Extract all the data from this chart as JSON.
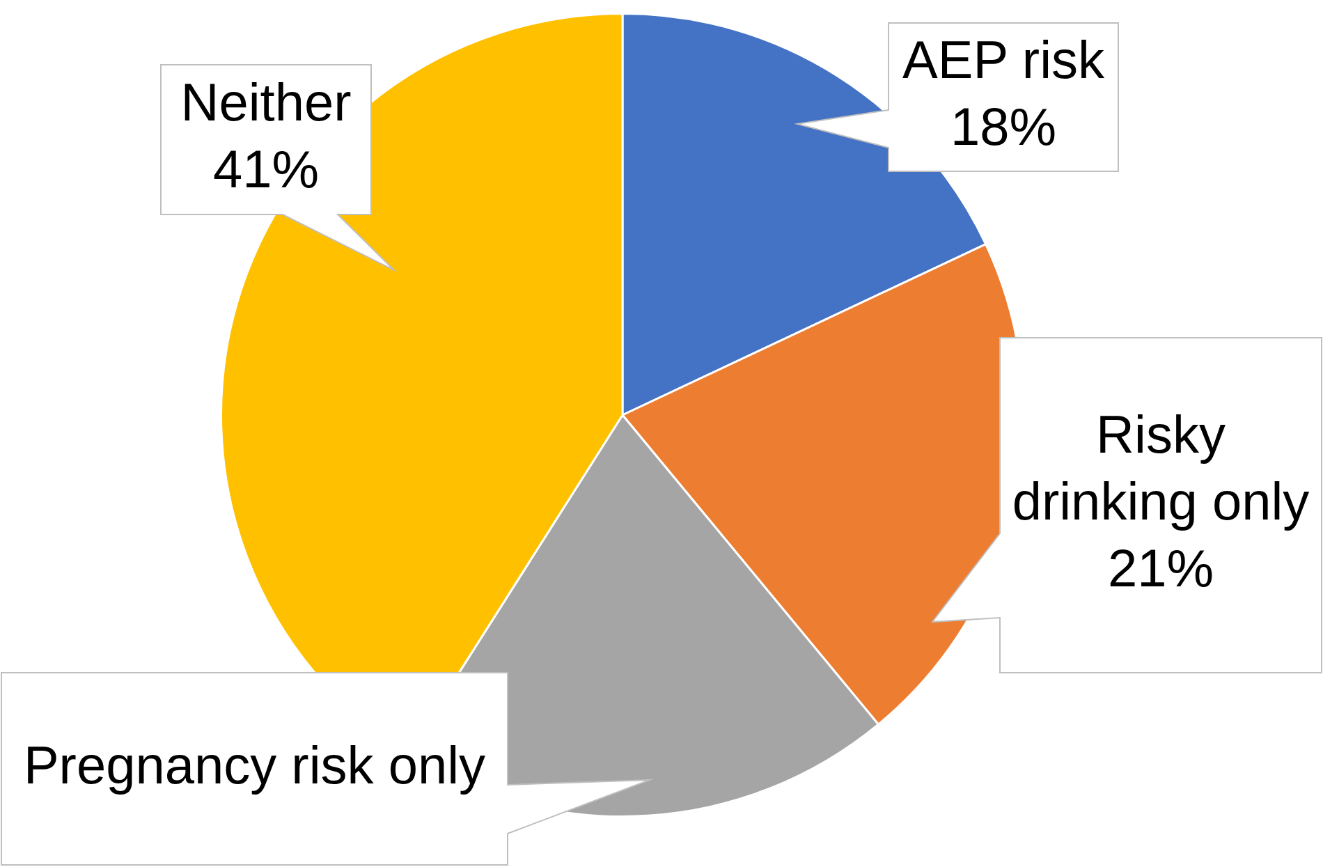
{
  "chart_data": {
    "type": "pie",
    "categories": [
      "AEP risk",
      "Risky drinking only",
      "Pregnancy risk only",
      "Neither"
    ],
    "values": [
      18,
      21,
      20,
      41
    ],
    "value_labels": [
      "18%",
      "21%",
      null,
      "41%"
    ],
    "colors": [
      "#4472c4",
      "#ed7d31",
      "#a5a5a5",
      "#ffc000"
    ],
    "legend": false
  }
}
